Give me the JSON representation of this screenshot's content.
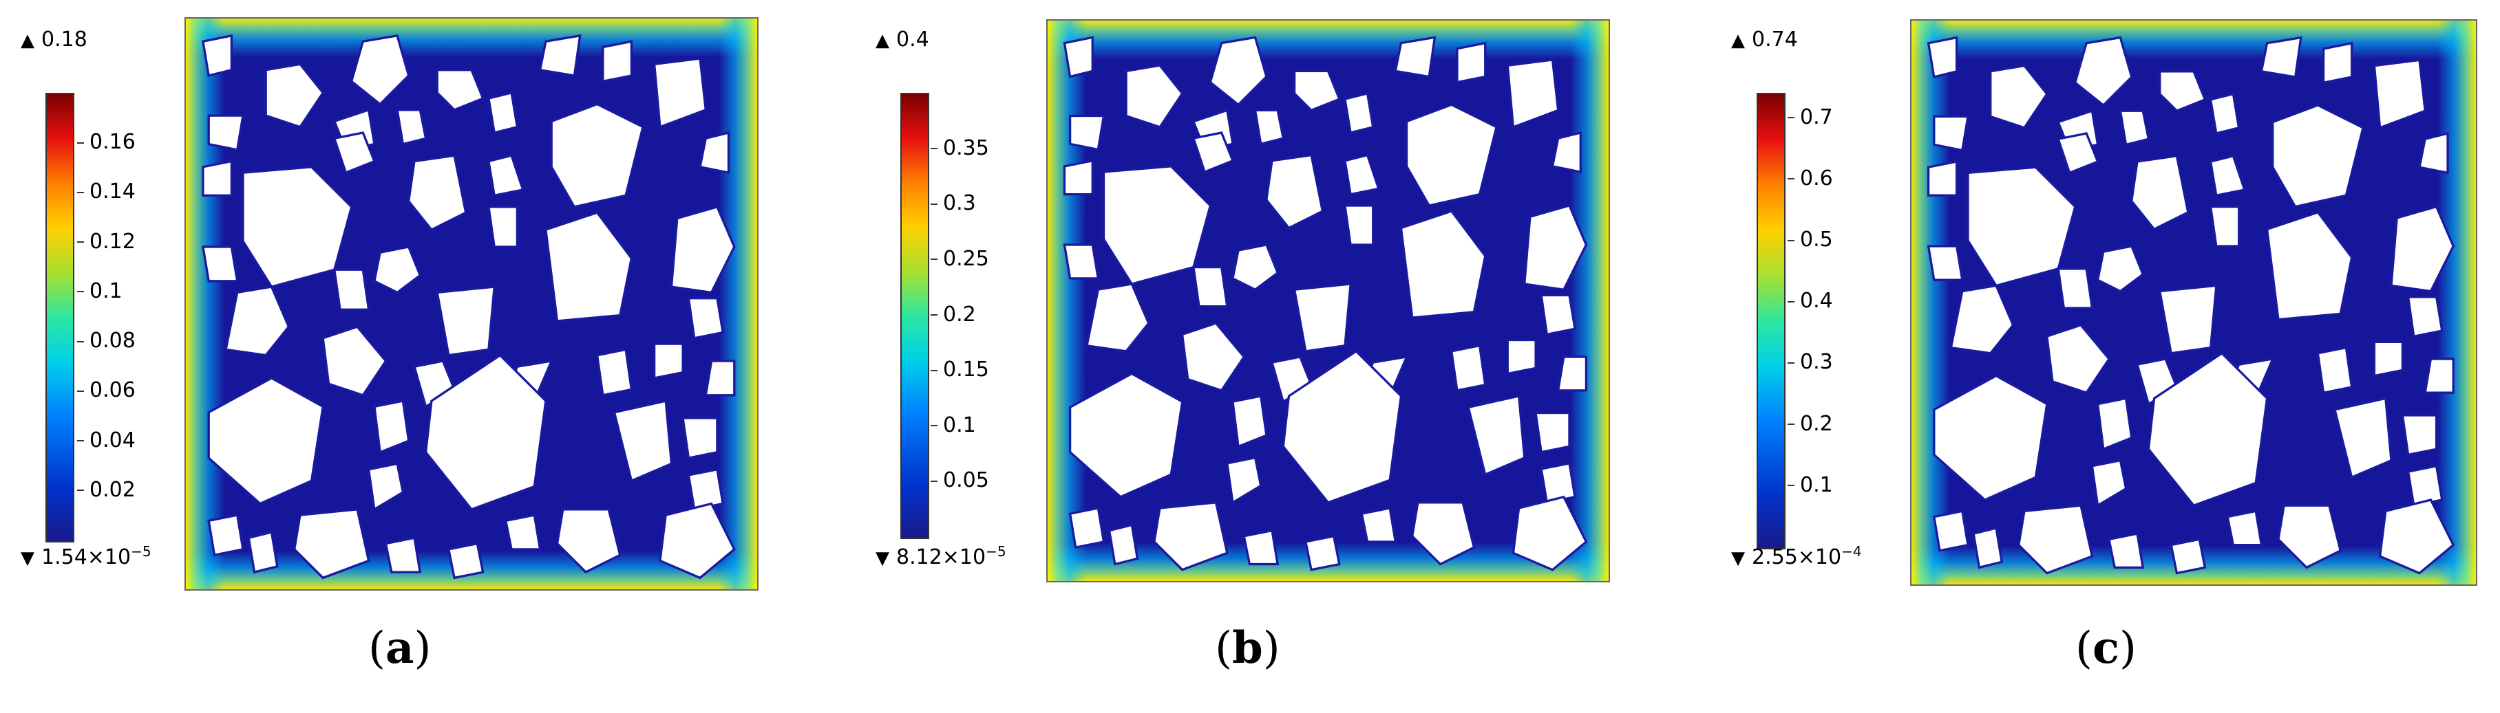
{
  "panels": [
    {
      "id": "a",
      "caption_open": "(",
      "caption_letter": "a",
      "caption_close": ")",
      "max_label": "0.18",
      "min_base": "1.54×10",
      "min_exp": "−5",
      "ticks": [
        "0.16",
        "0.14",
        "0.12",
        "0.1",
        "0.08",
        "0.06",
        "0.04",
        "0.02"
      ],
      "tick_values": [
        0.16,
        0.14,
        0.12,
        0.1,
        0.08,
        0.06,
        0.04,
        0.02
      ],
      "max_value": 0.18
    },
    {
      "id": "b",
      "caption_open": "(",
      "caption_letter": "b",
      "caption_close": ")",
      "max_label": "0.4",
      "min_base": "8.12×10",
      "min_exp": "−5",
      "ticks": [
        "0.35",
        "0.3",
        "0.25",
        "0.2",
        "0.15",
        "0.1",
        "0.05"
      ],
      "tick_values": [
        0.35,
        0.3,
        0.25,
        0.2,
        0.15,
        0.1,
        0.05
      ],
      "max_value": 0.4
    },
    {
      "id": "c",
      "caption_open": "(",
      "caption_letter": "c",
      "caption_close": ")",
      "max_label": "0.74",
      "min_base": "2.55×10",
      "min_exp": "−4",
      "ticks": [
        "0.7",
        "0.6",
        "0.5",
        "0.4",
        "0.3",
        "0.2",
        "0.1"
      ],
      "tick_values": [
        0.7,
        0.6,
        0.5,
        0.4,
        0.3,
        0.2,
        0.1
      ],
      "max_value": 0.74
    }
  ],
  "colors": {
    "field_background": "#16169a",
    "inclusion": "#ffffff",
    "edge_high": "#ffee00",
    "colorbar_top": "#7a0000",
    "colorbar_bottom": "#1a1a8c"
  },
  "symbols": {
    "max_marker": "▲",
    "min_marker": "▼"
  }
}
